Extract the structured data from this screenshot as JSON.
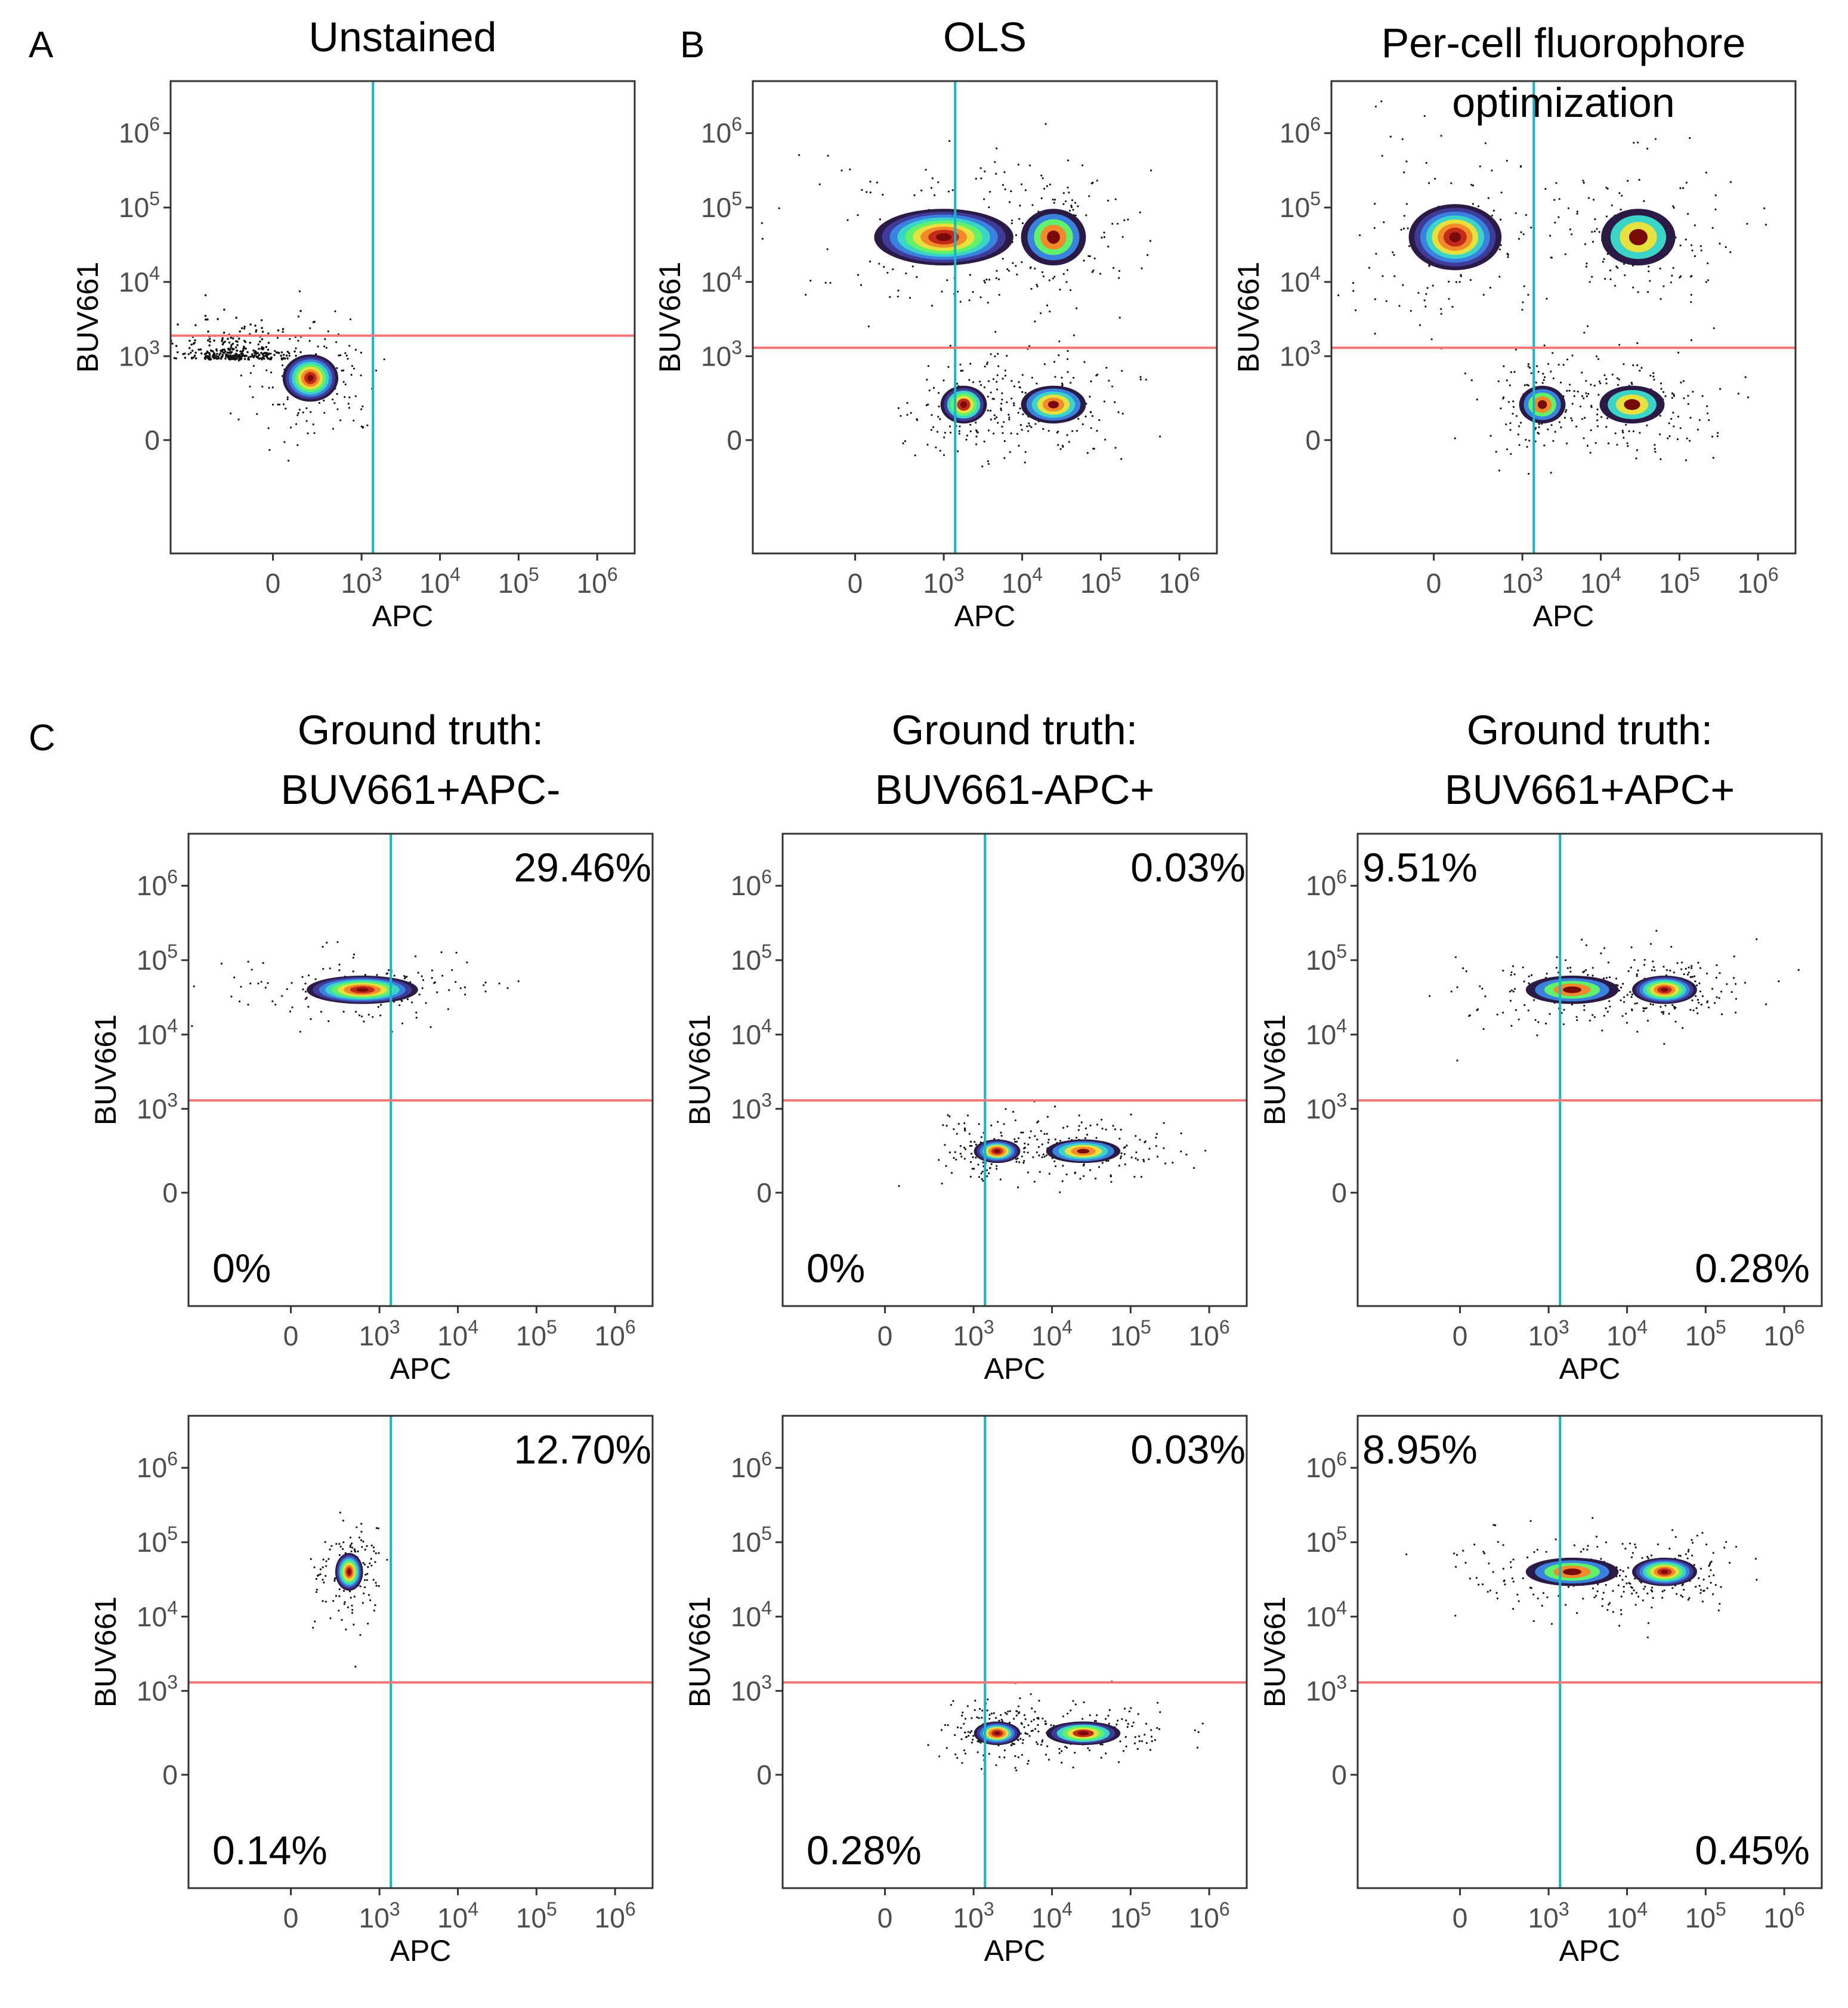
{
  "figure": {
    "panel_letters": [
      "A",
      "B",
      "C"
    ]
  },
  "colors": {
    "vline": "#17b6c4",
    "hline": "#f27878",
    "density": [
      "#2b1a45",
      "#3f3c99",
      "#3a82e0",
      "#3ad5c8",
      "#5ff26a",
      "#e6e13c",
      "#f28a2a",
      "#c42a1a",
      "#7a0a0a"
    ]
  },
  "chart_data": [
    {
      "id": "A-unstained",
      "type": "scatter",
      "panel_letter": "A",
      "title": [
        "Unstained"
      ],
      "xlabel": "APC",
      "ylabel": "BUV661",
      "scale": "biexponential",
      "xlim": [
        -1500,
        3000000
      ],
      "ylim": [
        -2500,
        5000000
      ],
      "xticks": [
        "0",
        "10^3",
        "10^4",
        "10^5",
        "10^6"
      ],
      "yticks": [
        "0",
        "10^3",
        "10^4",
        "10^5",
        "10^6"
      ],
      "vline_x": 1400,
      "hline_y": 1900,
      "populations": [
        {
          "x": 200,
          "y": 500,
          "sx": 0.06,
          "sy": 0.05,
          "levels": 9
        }
      ],
      "scatter_noise": {
        "x": -200,
        "y": 900,
        "spread": 0.25
      },
      "quadrant_labels": []
    },
    {
      "id": "B-ols",
      "type": "scatter",
      "panel_letter": "B",
      "title": [
        "OLS"
      ],
      "xlabel": "APC",
      "ylabel": "BUV661",
      "scale": "biexponential",
      "xlim": [
        -1500,
        3000000
      ],
      "ylim": [
        -2500,
        5000000
      ],
      "xticks": [
        "0",
        "10^3",
        "10^4",
        "10^5",
        "10^6"
      ],
      "yticks": [
        "0",
        "10^3",
        "10^4",
        "10^5",
        "10^6"
      ],
      "vline_x": 1400,
      "hline_y": 1300,
      "populations": [
        {
          "x": 1000,
          "y": 40000,
          "sx": 0.15,
          "sy": 0.06,
          "levels": 9
        },
        {
          "x": 25000,
          "y": 40000,
          "sx": 0.07,
          "sy": 0.06,
          "levels": 5
        },
        {
          "x": 1800,
          "y": 200,
          "sx": 0.05,
          "sy": 0.04,
          "levels": 7
        },
        {
          "x": 25000,
          "y": 200,
          "sx": 0.07,
          "sy": 0.04,
          "levels": 6
        }
      ],
      "scatter_noise": null,
      "quadrant_labels": []
    },
    {
      "id": "B-per-cell",
      "type": "scatter",
      "panel_letter": "",
      "title": [
        "Per-cell fluorophore",
        " optimization"
      ],
      "xlabel": "APC",
      "ylabel": "BUV661",
      "scale": "biexponential",
      "xlim": [
        -1500,
        3000000
      ],
      "ylim": [
        -2500,
        5000000
      ],
      "xticks": [
        "0",
        "10^3",
        "10^4",
        "10^5",
        "10^6"
      ],
      "yticks": [
        "0",
        "10^3",
        "10^4",
        "10^5",
        "10^6"
      ],
      "vline_x": 1400,
      "hline_y": 1300,
      "populations": [
        {
          "x": 100,
          "y": 40000,
          "sx": 0.1,
          "sy": 0.07,
          "levels": 8
        },
        {
          "x": 30000,
          "y": 40000,
          "sx": 0.08,
          "sy": 0.06,
          "levels": 4
        },
        {
          "x": 1800,
          "y": 200,
          "sx": 0.05,
          "sy": 0.04,
          "levels": 5
        },
        {
          "x": 25000,
          "y": 200,
          "sx": 0.07,
          "sy": 0.04,
          "levels": 4
        }
      ],
      "scatter_noise": null,
      "quadrant_labels": []
    },
    {
      "id": "C1-top",
      "type": "scatter",
      "panel_letter": "C",
      "title": [
        "Ground truth:",
        "BUV661+APC-"
      ],
      "xlabel": "APC",
      "ylabel": "BUV661",
      "scale": "biexponential",
      "xlim": [
        -1500,
        3000000
      ],
      "ylim": [
        -2500,
        5000000
      ],
      "xticks": [
        "0",
        "10^3",
        "10^4",
        "10^5",
        "10^6"
      ],
      "yticks": [
        "0",
        "10^3",
        "10^4",
        "10^5",
        "10^6"
      ],
      "vline_x": 1400,
      "hline_y": 1300,
      "populations": [
        {
          "x": 600,
          "y": 40000,
          "sx": 0.12,
          "sy": 0.03,
          "levels": 9
        }
      ],
      "scatter_noise": null,
      "quadrant_labels": [
        {
          "pos": "top-right",
          "text": "29.46%"
        },
        {
          "pos": "bottom-left",
          "text": "0%"
        }
      ]
    },
    {
      "id": "C2-top",
      "type": "scatter",
      "panel_letter": "",
      "title": [
        "Ground truth:",
        "BUV661-APC+"
      ],
      "xlabel": "APC",
      "ylabel": "BUV661",
      "scale": "biexponential",
      "xlim": [
        -1500,
        3000000
      ],
      "ylim": [
        -2500,
        5000000
      ],
      "xticks": [
        "0",
        "10^3",
        "10^4",
        "10^5",
        "10^6"
      ],
      "yticks": [
        "0",
        "10^3",
        "10^4",
        "10^5",
        "10^6"
      ],
      "vline_x": 1400,
      "hline_y": 1300,
      "populations": [
        {
          "x": 2000,
          "y": 250,
          "sx": 0.05,
          "sy": 0.025,
          "levels": 8
        },
        {
          "x": 25000,
          "y": 250,
          "sx": 0.08,
          "sy": 0.025,
          "levels": 6
        }
      ],
      "scatter_noise": null,
      "quadrant_labels": [
        {
          "pos": "top-right",
          "text": "0.03%"
        },
        {
          "pos": "bottom-left",
          "text": "0%"
        }
      ]
    },
    {
      "id": "C3-top",
      "type": "scatter",
      "panel_letter": "",
      "title": [
        "Ground truth:",
        "BUV661+APC+"
      ],
      "xlabel": "APC",
      "ylabel": "BUV661",
      "scale": "biexponential",
      "xlim": [
        -1500,
        3000000
      ],
      "ylim": [
        -2500,
        5000000
      ],
      "xticks": [
        "0",
        "10^3",
        "10^4",
        "10^5",
        "10^6"
      ],
      "yticks": [
        "0",
        "10^3",
        "10^4",
        "10^5",
        "10^6"
      ],
      "vline_x": 1400,
      "hline_y": 1300,
      "populations": [
        {
          "x": 2000,
          "y": 40000,
          "sx": 0.1,
          "sy": 0.03,
          "levels": 5
        },
        {
          "x": 30000,
          "y": 40000,
          "sx": 0.07,
          "sy": 0.03,
          "levels": 9
        }
      ],
      "scatter_noise": null,
      "quadrant_labels": [
        {
          "pos": "top-left",
          "text": "9.51%"
        },
        {
          "pos": "bottom-right",
          "text": "0.28%"
        }
      ]
    },
    {
      "id": "C1-bottom",
      "type": "scatter",
      "panel_letter": "",
      "title": [],
      "xlabel": "APC",
      "ylabel": "BUV661",
      "scale": "biexponential",
      "xlim": [
        -1500,
        3000000
      ],
      "ylim": [
        -2500,
        5000000
      ],
      "xticks": [
        "0",
        "10^3",
        "10^4",
        "10^5",
        "10^6"
      ],
      "yticks": [
        "0",
        "10^3",
        "10^4",
        "10^5",
        "10^6"
      ],
      "vline_x": 1400,
      "hline_y": 1300,
      "populations": [
        {
          "x": 400,
          "y": 40000,
          "sx": 0.03,
          "sy": 0.04,
          "levels": 9
        }
      ],
      "scatter_noise": null,
      "quadrant_labels": [
        {
          "pos": "top-right",
          "text": "12.70%"
        },
        {
          "pos": "bottom-left",
          "text": "0.14%"
        }
      ]
    },
    {
      "id": "C2-bottom",
      "type": "scatter",
      "panel_letter": "",
      "title": [],
      "xlabel": "APC",
      "ylabel": "BUV661",
      "scale": "biexponential",
      "xlim": [
        -1500,
        3000000
      ],
      "ylim": [
        -2500,
        5000000
      ],
      "xticks": [
        "0",
        "10^3",
        "10^4",
        "10^5",
        "10^6"
      ],
      "yticks": [
        "0",
        "10^3",
        "10^4",
        "10^5",
        "10^6"
      ],
      "vline_x": 1400,
      "hline_y": 1300,
      "populations": [
        {
          "x": 2000,
          "y": 250,
          "sx": 0.05,
          "sy": 0.025,
          "levels": 8
        },
        {
          "x": 25000,
          "y": 250,
          "sx": 0.08,
          "sy": 0.025,
          "levels": 7
        }
      ],
      "scatter_noise": null,
      "quadrant_labels": [
        {
          "pos": "top-right",
          "text": "0.03%"
        },
        {
          "pos": "bottom-left",
          "text": "0.28%"
        }
      ]
    },
    {
      "id": "C3-bottom",
      "type": "scatter",
      "panel_letter": "",
      "title": [],
      "xlabel": "APC",
      "ylabel": "BUV661",
      "scale": "biexponential",
      "xlim": [
        -1500,
        3000000
      ],
      "ylim": [
        -2500,
        5000000
      ],
      "xticks": [
        "0",
        "10^3",
        "10^4",
        "10^5",
        "10^6"
      ],
      "yticks": [
        "0",
        "10^3",
        "10^4",
        "10^5",
        "10^6"
      ],
      "vline_x": 1400,
      "hline_y": 1300,
      "populations": [
        {
          "x": 2000,
          "y": 40000,
          "sx": 0.1,
          "sy": 0.03,
          "levels": 5
        },
        {
          "x": 30000,
          "y": 40000,
          "sx": 0.07,
          "sy": 0.03,
          "levels": 9
        }
      ],
      "scatter_noise": null,
      "quadrant_labels": [
        {
          "pos": "top-left",
          "text": "8.95%"
        },
        {
          "pos": "bottom-right",
          "text": "0.45%"
        }
      ]
    }
  ]
}
